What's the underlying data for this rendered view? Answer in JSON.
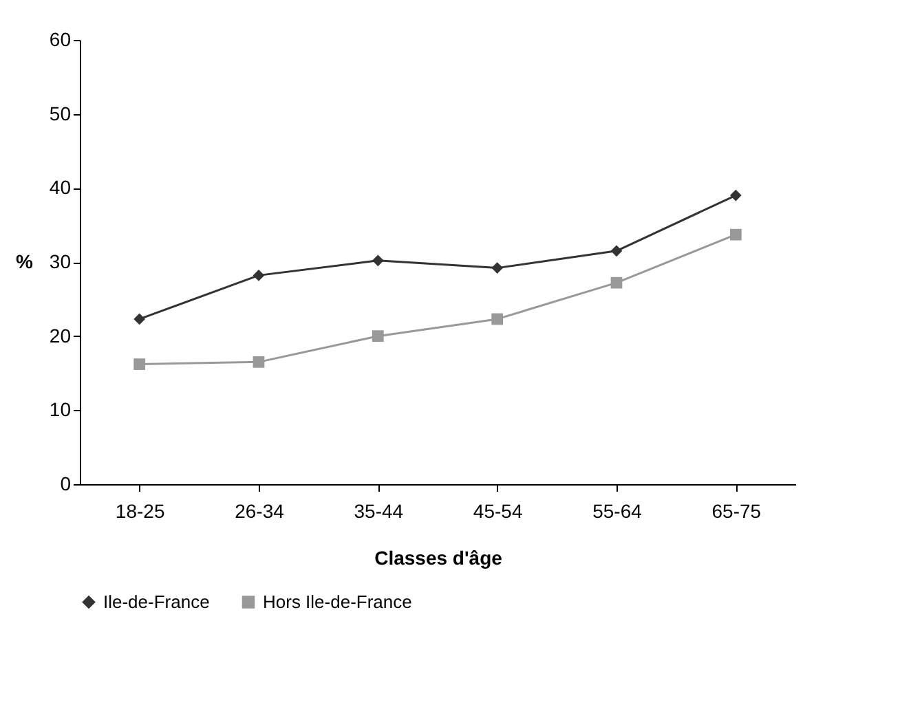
{
  "chart_data": {
    "type": "line",
    "xlabel": "Classes d'âge",
    "ylabel": "%",
    "categories": [
      "18-25",
      "26-34",
      "35-44",
      "45-54",
      "55-64",
      "65-75"
    ],
    "series": [
      {
        "name": "Ile-de-France",
        "color": "#333333",
        "marker": "diamond",
        "values": [
          22.3,
          28.2,
          30.2,
          29.2,
          31.5,
          39.0
        ]
      },
      {
        "name": "Hors Ile-de-France",
        "color": "#999999",
        "marker": "square",
        "values": [
          16.2,
          16.5,
          20.0,
          22.3,
          27.2,
          33.7
        ]
      }
    ],
    "ylim": [
      0,
      60
    ],
    "yticks": [
      0,
      10,
      20,
      30,
      40,
      50,
      60
    ],
    "grid": false,
    "legend": "bottom",
    "line_style": "solid"
  }
}
